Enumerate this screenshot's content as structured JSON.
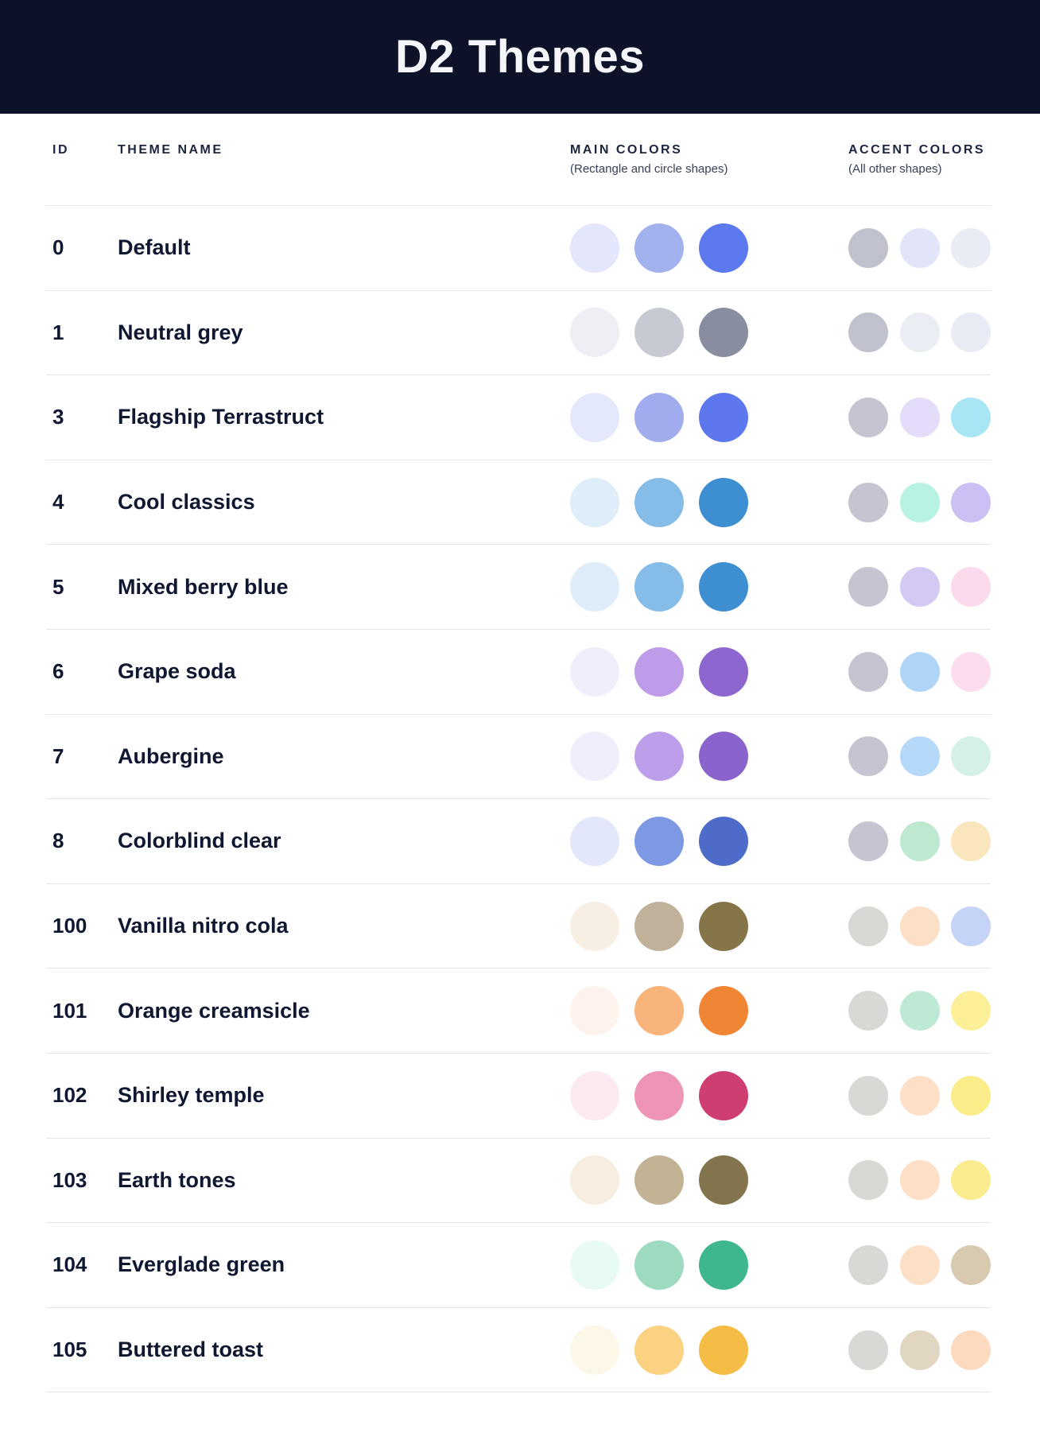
{
  "header": {
    "title": "D2 Themes"
  },
  "columns": {
    "id": "ID",
    "theme_name": "THEME NAME",
    "main_colors": "MAIN COLORS",
    "main_colors_sub": "(Rectangle and circle shapes)",
    "accent_colors": "ACCENT COLORS",
    "accent_colors_sub": "(All other shapes)"
  },
  "colors": {
    "header_bg": "#0D1228",
    "header_text": "#F5F6FA",
    "heading_text": "#1D2540",
    "subtext": "#39415A",
    "row_text": "#0F1830",
    "divider": "#E2E4EE",
    "page_bg": "#FFFFFF"
  },
  "themes": [
    {
      "id": "0",
      "name": "Default",
      "main": [
        "#E4E7FB",
        "#A3B2EF",
        "#5C79EF"
      ],
      "accent": [
        "#C0C2CD",
        "#E2E5FA",
        "#EAECF5"
      ]
    },
    {
      "id": "1",
      "name": "Neutral grey",
      "main": [
        "#EDEFF5",
        "#C7C9D3",
        "#898DA0"
      ],
      "accent": [
        "#C0C2CD",
        "#EBEDF5",
        "#EAECF5"
      ]
    },
    {
      "id": "3",
      "name": "Flagship Terrastruct",
      "main": [
        "#E4E8FB",
        "#A0ACEE",
        "#5D78EF"
      ],
      "accent": [
        "#C4C5D0",
        "#E4DCF8",
        "#A9E6F5"
      ]
    },
    {
      "id": "4",
      "name": "Cool classics",
      "main": [
        "#DFEDFA",
        "#86BDE8",
        "#3E8ED2"
      ],
      "accent": [
        "#C4C5D0",
        "#B7F2E3",
        "#CBBFF3"
      ]
    },
    {
      "id": "5",
      "name": "Mixed berry blue",
      "main": [
        "#DFEDFA",
        "#86BDE8",
        "#3E8ED2"
      ],
      "accent": [
        "#C4C5D0",
        "#D4C9F3",
        "#FBDAED"
      ]
    },
    {
      "id": "6",
      "name": "Grape soda",
      "main": [
        "#F2EDFB",
        "#BE9CE9",
        "#8D67CF"
      ],
      "accent": [
        "#C4C5D0",
        "#AFD5F6",
        "#FCDDEF"
      ]
    },
    {
      "id": "7",
      "name": "Aubergine",
      "main": [
        "#F1EDFA",
        "#BD9EEA",
        "#8A63CC"
      ],
      "accent": [
        "#C4C5D0",
        "#B5D9F8",
        "#D5F0E9"
      ]
    },
    {
      "id": "8",
      "name": "Colorblind clear",
      "main": [
        "#E2E7FA",
        "#7D99E4",
        "#4D6CC9"
      ],
      "accent": [
        "#C4C5D0",
        "#BDE9D1",
        "#FAE6BC"
      ]
    },
    {
      "id": "100",
      "name": "Vanilla nitro cola",
      "main": [
        "#F8EFE4",
        "#C0B29A",
        "#857549"
      ],
      "accent": [
        "#D9D8D5",
        "#FCDFC7",
        "#C4D3F6"
      ]
    },
    {
      "id": "101",
      "name": "Orange creamsicle",
      "main": [
        "#FDF3EC",
        "#F8B47B",
        "#F08534"
      ],
      "accent": [
        "#D9D8D5",
        "#BDE9D5",
        "#FBF098"
      ]
    },
    {
      "id": "102",
      "name": "Shirley temple",
      "main": [
        "#FCEAF2",
        "#EE94B7",
        "#CF3E72"
      ],
      "accent": [
        "#D9D8D5",
        "#FCDFC6",
        "#FAED89"
      ]
    },
    {
      "id": "103",
      "name": "Earth tones",
      "main": [
        "#F7EEE1",
        "#C2B394",
        "#84744E"
      ],
      "accent": [
        "#D9D8D5",
        "#FCDFC6",
        "#FAEC8E"
      ]
    },
    {
      "id": "104",
      "name": "Everglade green",
      "main": [
        "#E7FAF3",
        "#9DDABF",
        "#3DB78B"
      ],
      "accent": [
        "#D9D8D5",
        "#FCDFC7",
        "#D7CAB0"
      ]
    },
    {
      "id": "105",
      "name": "Buttered toast",
      "main": [
        "#FDF7E7",
        "#FBD282",
        "#F6BD46"
      ],
      "accent": [
        "#D9D8D5",
        "#E1D6C1",
        "#FCDABF"
      ]
    }
  ]
}
